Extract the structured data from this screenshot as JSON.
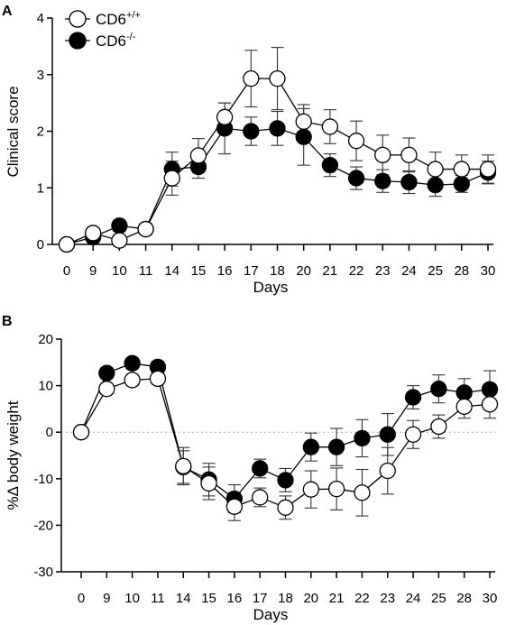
{
  "chart_data": [
    {
      "panel": "A",
      "type": "line",
      "xlabel": "Days",
      "ylabel": "Clinical score",
      "categories": [
        "0",
        "9",
        "10",
        "11",
        "14",
        "15",
        "16",
        "17",
        "18",
        "20",
        "21",
        "22",
        "23",
        "24",
        "25",
        "28",
        "30"
      ],
      "ylim": [
        0,
        4
      ],
      "yticks": [
        0,
        1,
        2,
        3,
        4
      ],
      "legend_position": "top-left",
      "series": [
        {
          "name": "CD6",
          "superscript": "+/+",
          "marker": "open",
          "values": [
            0,
            0.2,
            0.07,
            0.27,
            1.17,
            1.57,
            2.25,
            2.93,
            2.93,
            2.17,
            2.08,
            1.83,
            1.58,
            1.58,
            1.33,
            1.33,
            1.33
          ],
          "errors": [
            0,
            0.1,
            0.1,
            0.1,
            0.3,
            0.3,
            0.25,
            0.5,
            0.55,
            0.3,
            0.3,
            0.35,
            0.35,
            0.3,
            0.3,
            0.25,
            0.25
          ]
        },
        {
          "name": "CD6",
          "superscript": "-/-",
          "marker": "filled",
          "values": [
            0,
            0.13,
            0.33,
            0.27,
            1.33,
            1.37,
            2.05,
            2.0,
            2.05,
            1.9,
            1.4,
            1.17,
            1.12,
            1.1,
            1.05,
            1.07,
            1.27
          ],
          "errors": [
            0,
            0.1,
            0.1,
            0.1,
            0.3,
            0.2,
            0.45,
            0.25,
            0.3,
            0.5,
            0.2,
            0.2,
            0.2,
            0.2,
            0.2,
            0.15,
            0.2
          ]
        }
      ]
    },
    {
      "panel": "B",
      "type": "line",
      "xlabel": "Days",
      "ylabel": "%Δ body weight",
      "categories": [
        "0",
        "9",
        "10",
        "11",
        "14",
        "15",
        "16",
        "17",
        "18",
        "20",
        "21",
        "22",
        "23",
        "24",
        "25",
        "28",
        "30"
      ],
      "ylim": [
        -30,
        20
      ],
      "yticks": [
        -30,
        -20,
        -10,
        0,
        10,
        20
      ],
      "zero_line": true,
      "series": [
        {
          "name": "CD6",
          "superscript": "+/+",
          "marker": "open",
          "values": [
            0,
            9.3,
            11.2,
            11.5,
            -7.3,
            -11.0,
            -16.0,
            -14.0,
            -16.2,
            -12.3,
            -12.2,
            -13.0,
            -8.3,
            -0.5,
            1.2,
            5.5,
            6.0
          ],
          "errors": [
            0,
            1.2,
            1.2,
            1.2,
            4.0,
            3.5,
            3.0,
            2.0,
            2.5,
            4.0,
            4.5,
            5.0,
            5.0,
            3.0,
            2.5,
            2.5,
            3.0
          ]
        },
        {
          "name": "CD6",
          "superscript": "-/-",
          "marker": "filled",
          "values": [
            0,
            12.7,
            14.8,
            14.0,
            -7.5,
            -10.2,
            -14.3,
            -7.8,
            -10.3,
            -3.2,
            -3.2,
            -1.3,
            -0.5,
            7.5,
            9.3,
            8.5,
            9.2
          ],
          "errors": [
            0,
            1.2,
            1.2,
            1.2,
            3.5,
            3.5,
            3.0,
            2.0,
            2.5,
            3.0,
            4.0,
            4.0,
            4.5,
            2.5,
            3.0,
            3.0,
            4.0
          ]
        }
      ]
    }
  ]
}
